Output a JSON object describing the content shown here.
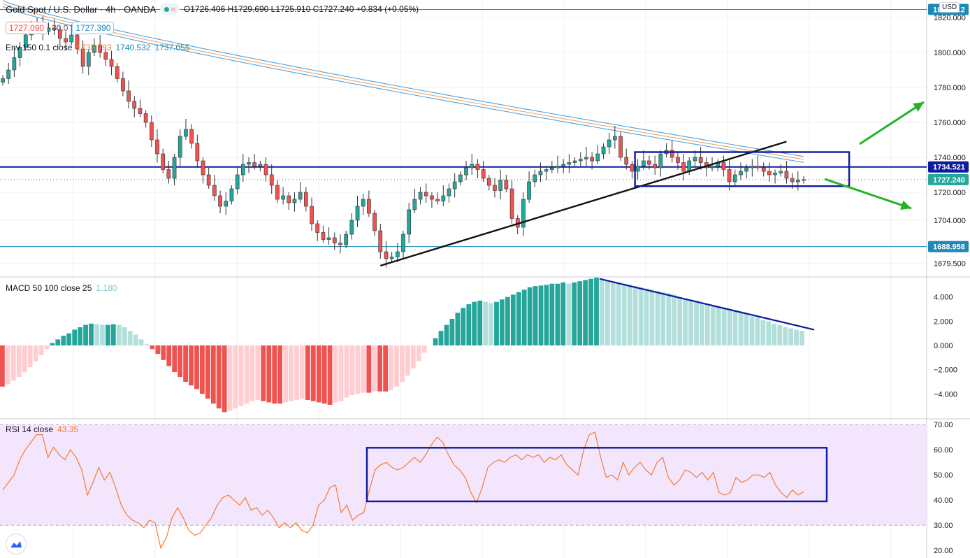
{
  "header": {
    "symbol": "Gold Spot / U.S. Dollar · 4h · OANDA",
    "ohlc": "O1726.406 H1729.690 L1725.910 C1727.240 +0.834 (+0.05%)",
    "bid": "1727.090",
    "spread": "30.0",
    "ask": "1727.390",
    "currency": "USD"
  },
  "indicators": {
    "env_label": "Env 150 0.1 close",
    "env_values": [
      "1738.793",
      "1740.532",
      "1737.055"
    ],
    "macd_label": "MACD 50 100 close 25",
    "macd_value": "1.180",
    "rsi_label": "RSI 14 close",
    "rsi_value": "43.35"
  },
  "colors": {
    "up": "#26a69a",
    "down": "#ef5350",
    "hist_up_fading": "#b2dfdb",
    "hist_down_fading": "#ffcdd2",
    "env_mid": "#f7a35c",
    "env_band": "#4fa3e0",
    "drawing_blue": "#0d1a9e",
    "arrow": "#22b322",
    "rsi": "#f57c32",
    "rsi_bg": "#f3e5fc"
  },
  "price_axis": {
    "ticks": [
      "1820.000",
      "1800.000",
      "1780.000",
      "1760.000",
      "1740.000",
      "1720.000",
      "1704.000",
      "1679.500"
    ],
    "tick_values": [
      1820,
      1800,
      1780,
      1760,
      1740,
      1720,
      1704,
      1679.5
    ],
    "tags": [
      {
        "label": "1824.612",
        "value": 1824.612,
        "color": "#1e88b6"
      },
      {
        "label": "1734.521",
        "value": 1734.521,
        "color": "#0d1a9e"
      },
      {
        "label": "1727.240",
        "value": 1727.24,
        "color": "#26a69a"
      },
      {
        "label": "1688.958",
        "value": 1688.958,
        "color": "#1e88b6"
      }
    ]
  },
  "macd_axis": {
    "ticks": [
      "4.000",
      "2.000",
      "0.000",
      "−2.000",
      "−4.000"
    ],
    "tick_values": [
      4,
      2,
      0,
      -2,
      -4
    ]
  },
  "rsi_axis": {
    "ticks": [
      "70.00",
      "60.00",
      "50.00",
      "40.00",
      "30.00",
      "20.00"
    ],
    "tick_values": [
      70,
      60,
      50,
      40,
      30,
      20
    ]
  },
  "chart_data": [
    {
      "type": "candlestick",
      "title": "Gold Spot / U.S. Dollar · 4h · OANDA",
      "ylim": [
        1672,
        1830
      ],
      "horizontal_lines": [
        1824.612,
        1734.521,
        1688.958
      ],
      "last_price": 1727.24,
      "close_path": [
        1785,
        1790,
        1797,
        1803,
        1810,
        1816,
        1815,
        1812,
        1814,
        1813,
        1808,
        1806,
        1810,
        1802,
        1792,
        1800,
        1804,
        1800,
        1796,
        1792,
        1785,
        1778,
        1772,
        1768,
        1765,
        1760,
        1750,
        1742,
        1733,
        1728,
        1740,
        1752,
        1756,
        1748,
        1738,
        1730,
        1724,
        1718,
        1712,
        1715,
        1722,
        1730,
        1736,
        1737,
        1735,
        1736,
        1730,
        1724,
        1716,
        1718,
        1714,
        1716,
        1720,
        1712,
        1702,
        1697,
        1693,
        1694,
        1691,
        1690,
        1696,
        1704,
        1712,
        1716,
        1708,
        1698,
        1686,
        1682,
        1683,
        1686,
        1696,
        1710,
        1716,
        1720,
        1718,
        1716,
        1715,
        1718,
        1722,
        1726,
        1730,
        1734,
        1736,
        1733,
        1728,
        1724,
        1721,
        1727,
        1722,
        1705,
        1700,
        1716,
        1726,
        1730,
        1732,
        1733,
        1734,
        1735,
        1736,
        1737,
        1738,
        1739,
        1740,
        1738,
        1742,
        1746,
        1750,
        1752,
        1740,
        1736,
        1732,
        1735,
        1738,
        1736,
        1734,
        1742,
        1744,
        1740,
        1737,
        1732,
        1738,
        1740,
        1737,
        1734,
        1735,
        1737,
        1733,
        1726,
        1730,
        1732,
        1734,
        1735,
        1734,
        1732,
        1730,
        1731,
        1732,
        1728,
        1726,
        1727,
        1727.24
      ]
    },
    {
      "type": "bar",
      "name": "MACD 50 100 close 25",
      "ylim": [
        -6,
        5.6
      ],
      "values": [
        -3.4,
        -3.2,
        -2.9,
        -2.6,
        -2.2,
        -1.8,
        -1.3,
        -0.8,
        -0.3,
        0.2,
        0.5,
        0.8,
        1.0,
        1.3,
        1.5,
        1.7,
        1.8,
        1.75,
        1.7,
        1.7,
        1.75,
        1.7,
        1.5,
        1.2,
        0.9,
        0.5,
        0.1,
        -0.3,
        -0.7,
        -1.2,
        -1.7,
        -2.2,
        -2.6,
        -3.0,
        -3.3,
        -3.6,
        -4.0,
        -4.4,
        -4.8,
        -5.2,
        -5.5,
        -5.4,
        -5.2,
        -5.0,
        -4.8,
        -4.6,
        -4.5,
        -4.6,
        -4.7,
        -4.8,
        -4.8,
        -4.7,
        -4.6,
        -4.5,
        -4.4,
        -4.5,
        -4.6,
        -4.7,
        -4.8,
        -4.9,
        -4.7,
        -4.6,
        -4.3,
        -4.1,
        -4.0,
        -3.9,
        -3.9,
        -3.8,
        -3.8,
        -3.8,
        -3.7,
        -3.4,
        -3.0,
        -2.5,
        -1.9,
        -1.3,
        -0.6,
        0.0,
        0.6,
        1.2,
        1.7,
        2.2,
        2.7,
        3.1,
        3.4,
        3.6,
        3.7,
        3.6,
        3.5,
        3.6,
        3.8,
        4.0,
        4.2,
        4.4,
        4.6,
        4.8,
        4.9,
        4.95,
        5.0,
        5.1,
        5.1,
        5.2,
        5.1,
        5.2,
        5.3,
        5.4,
        5.5,
        5.6,
        5.5,
        5.4,
        5.3,
        5.2,
        5.1,
        5.0,
        4.9,
        4.8,
        4.7,
        4.6,
        4.5,
        4.4,
        4.3,
        4.2,
        4.0,
        3.9,
        3.8,
        3.7,
        3.5,
        3.4,
        3.3,
        3.2,
        3.1,
        3.0,
        2.9,
        2.7,
        2.6,
        2.4,
        2.3,
        2.1,
        2.0,
        1.8,
        1.7,
        1.5,
        1.4,
        1.3,
        1.2
      ],
      "annotation_line": [
        [
          5.5
        ],
        [
          1.3
        ]
      ]
    },
    {
      "type": "line",
      "name": "RSI 14 close",
      "ylim": [
        20,
        70
      ],
      "band": [
        30,
        70
      ],
      "values": [
        44,
        47,
        50,
        56,
        60,
        63,
        66,
        66,
        57,
        61,
        58,
        56,
        60,
        57,
        52,
        42,
        47,
        53,
        48,
        51,
        45,
        38,
        34,
        32,
        31,
        29,
        32,
        31,
        21,
        25,
        33,
        37,
        33,
        28,
        26,
        27,
        30,
        33,
        38,
        41,
        42,
        40,
        38,
        41,
        36,
        37,
        34,
        36,
        33,
        29,
        31,
        29,
        31,
        28,
        27,
        30,
        38,
        40,
        45,
        46,
        35,
        38,
        32,
        34,
        35,
        44,
        52,
        54,
        55,
        53,
        52,
        53,
        55,
        57,
        55,
        58,
        62,
        65,
        63,
        58,
        54,
        52,
        49,
        43,
        39,
        45,
        53,
        55,
        56,
        55,
        57,
        58,
        56,
        58,
        57,
        58,
        55,
        57,
        56,
        58,
        54,
        52,
        50,
        60,
        66,
        67,
        57,
        49,
        50,
        48,
        55,
        50,
        53,
        55,
        52,
        50,
        55,
        57,
        49,
        46,
        48,
        52,
        51,
        49,
        51,
        48,
        51,
        43,
        42,
        43,
        49,
        47,
        48,
        50,
        50,
        49,
        51,
        46,
        43,
        41,
        44,
        42,
        43.35
      ]
    }
  ]
}
